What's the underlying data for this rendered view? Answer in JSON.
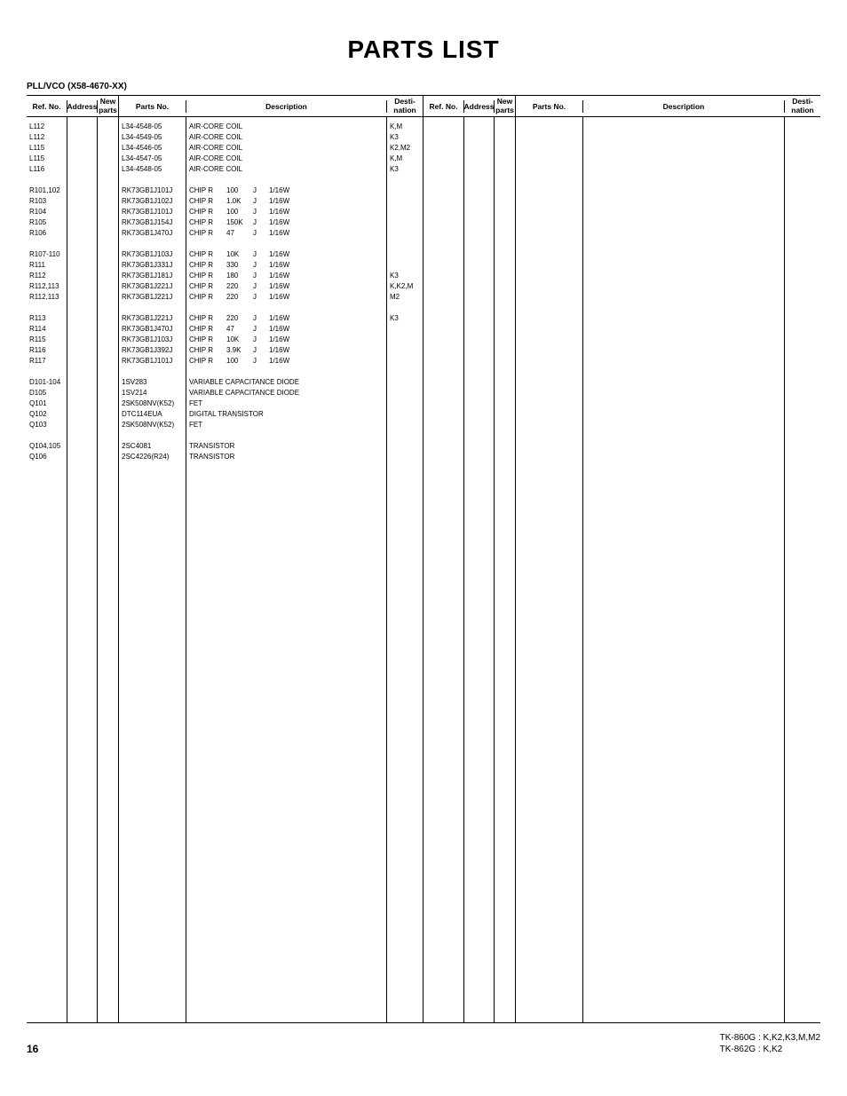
{
  "title": "PARTS LIST",
  "subtitle": "PLL/VCO (X58-4670-XX)",
  "headers": {
    "ref": "Ref. No.",
    "addr": "Address",
    "new": "New parts",
    "parts": "Parts No.",
    "desc": "Description",
    "dest": "Desti-nation"
  },
  "groups": [
    {
      "rows": [
        {
          "ref": "L112",
          "parts": "L34-4548-05",
          "desc": "AIR-CORE COIL",
          "dest": "K,M"
        },
        {
          "ref": "L112",
          "parts": "L34-4549-05",
          "desc": "AIR-CORE COIL",
          "dest": "K3"
        },
        {
          "ref": "L115",
          "parts": "L34-4546-05",
          "desc": "AIR-CORE COIL",
          "dest": "K2,M2"
        },
        {
          "ref": "L115",
          "parts": "L34-4547-05",
          "desc": "AIR-CORE COIL",
          "dest": "K,M"
        },
        {
          "ref": "L116",
          "parts": "L34-4548-05",
          "desc": "AIR-CORE COIL",
          "dest": "K3"
        }
      ]
    },
    {
      "rows": [
        {
          "ref": "R101,102",
          "parts": "RK73GB1J101J",
          "d1": "CHIP R",
          "d2": "100",
          "d3": "J",
          "d4": "1/16W",
          "dest": ""
        },
        {
          "ref": "R103",
          "parts": "RK73GB1J102J",
          "d1": "CHIP R",
          "d2": "1.0K",
          "d3": "J",
          "d4": "1/16W",
          "dest": ""
        },
        {
          "ref": "R104",
          "parts": "RK73GB1J101J",
          "d1": "CHIP R",
          "d2": "100",
          "d3": "J",
          "d4": "1/16W",
          "dest": ""
        },
        {
          "ref": "R105",
          "parts": "RK73GB1J154J",
          "d1": "CHIP R",
          "d2": "150K",
          "d3": "J",
          "d4": "1/16W",
          "dest": ""
        },
        {
          "ref": "R106",
          "parts": "RK73GB1J470J",
          "d1": "CHIP R",
          "d2": "47",
          "d3": "J",
          "d4": "1/16W",
          "dest": ""
        }
      ]
    },
    {
      "rows": [
        {
          "ref": "R107-110",
          "parts": "RK73GB1J103J",
          "d1": "CHIP R",
          "d2": "10K",
          "d3": "J",
          "d4": "1/16W",
          "dest": ""
        },
        {
          "ref": "R111",
          "parts": "RK73GB1J331J",
          "d1": "CHIP R",
          "d2": "330",
          "d3": "J",
          "d4": "1/16W",
          "dest": ""
        },
        {
          "ref": "R112",
          "parts": "RK73GB1J181J",
          "d1": "CHIP R",
          "d2": "180",
          "d3": "J",
          "d4": "1/16W",
          "dest": "K3"
        },
        {
          "ref": "R112,113",
          "parts": "RK73GB1J221J",
          "d1": "CHIP R",
          "d2": "220",
          "d3": "J",
          "d4": "1/16W",
          "dest": "K,K2,M"
        },
        {
          "ref": "R112,113",
          "parts": "RK73GB1J221J",
          "d1": "CHIP R",
          "d2": "220",
          "d3": "J",
          "d4": "1/16W",
          "dest": "M2"
        }
      ]
    },
    {
      "rows": [
        {
          "ref": "R113",
          "parts": "RK73GB1J221J",
          "d1": "CHIP R",
          "d2": "220",
          "d3": "J",
          "d4": "1/16W",
          "dest": "K3"
        },
        {
          "ref": "R114",
          "parts": "RK73GB1J470J",
          "d1": "CHIP R",
          "d2": "47",
          "d3": "J",
          "d4": "1/16W",
          "dest": ""
        },
        {
          "ref": "R115",
          "parts": "RK73GB1J103J",
          "d1": "CHIP R",
          "d2": "10K",
          "d3": "J",
          "d4": "1/16W",
          "dest": ""
        },
        {
          "ref": "R116",
          "parts": "RK73GB1J392J",
          "d1": "CHIP R",
          "d2": "3.9K",
          "d3": "J",
          "d4": "1/16W",
          "dest": ""
        },
        {
          "ref": "R117",
          "parts": "RK73GB1J101J",
          "d1": "CHIP R",
          "d2": "100",
          "d3": "J",
          "d4": "1/16W",
          "dest": ""
        }
      ]
    },
    {
      "rows": [
        {
          "ref": "D101-104",
          "parts": "1SV283",
          "desc": "VARIABLE CAPACITANCE DIODE",
          "dest": ""
        },
        {
          "ref": "D105",
          "parts": "1SV214",
          "desc": "VARIABLE CAPACITANCE DIODE",
          "dest": ""
        },
        {
          "ref": "Q101",
          "parts": "2SK508NV(K52)",
          "desc": "FET",
          "dest": ""
        },
        {
          "ref": "Q102",
          "parts": "DTC114EUA",
          "desc": "DIGITAL TRANSISTOR",
          "dest": ""
        },
        {
          "ref": "Q103",
          "parts": "2SK508NV(K52)",
          "desc": "FET",
          "dest": ""
        }
      ]
    },
    {
      "rows": [
        {
          "ref": "Q104,105",
          "parts": "2SC4081",
          "desc": "TRANSISTOR",
          "dest": ""
        },
        {
          "ref": "Q106",
          "parts": "2SC4226(R24)",
          "desc": "TRANSISTOR",
          "dest": ""
        }
      ]
    }
  ],
  "footer": {
    "page": "16",
    "model1": "TK-860G : K,K2,K3,M,M2",
    "model2": "TK-862G : K,K2"
  }
}
